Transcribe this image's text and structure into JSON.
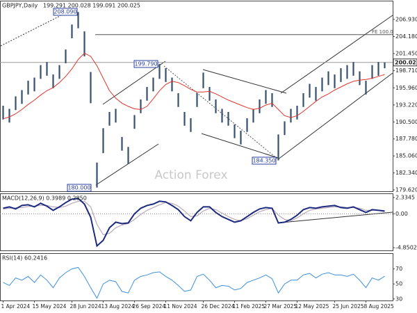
{
  "chart_data": [
    {
      "type": "ohlc",
      "title": "GBPJPY,Daily",
      "subtitle": "199.291 200.028 199.091 200.025",
      "high": [
        193.1,
        192.6,
        194.6,
        195.6,
        197.1,
        197.6,
        199.6,
        200.1,
        198.1,
        199.6,
        202.1,
        206.1,
        208.09,
        205.0,
        198.5,
        184.0,
        189.5,
        192.1,
        192.6,
        188.1,
        186.5,
        191.6,
        194.1,
        196.1,
        197.6,
        199.79,
        199.1,
        197.6,
        195.1,
        192.1,
        191.1,
        195.1,
        198.4,
        196.1,
        194.1,
        192.6,
        192.1,
        190.1,
        189.1,
        191.1,
        192.6,
        194.1,
        195.6,
        195.1,
        188.5,
        190.6,
        192.6,
        193.1,
        195.1,
        196.6,
        196.1,
        197.6,
        198.6,
        198.1,
        199.1,
        199.6,
        200.1,
        198.6,
        197.1,
        199.6,
        200.1,
        200.028
      ],
      "low": [
        190.9,
        190.4,
        192.4,
        193.4,
        194.9,
        195.4,
        197.4,
        197.9,
        195.9,
        197.4,
        199.9,
        203.9,
        205.5,
        201.0,
        193.5,
        180.0,
        185.5,
        189.9,
        190.4,
        185.9,
        183.8,
        189.4,
        191.9,
        193.9,
        195.4,
        197.4,
        196.9,
        195.4,
        192.9,
        189.9,
        188.9,
        192.9,
        195.9,
        193.9,
        191.9,
        190.4,
        189.9,
        187.9,
        186.9,
        188.9,
        190.4,
        191.9,
        193.4,
        192.9,
        184.35,
        188.4,
        190.4,
        190.9,
        192.9,
        194.4,
        193.9,
        195.4,
        196.4,
        195.9,
        196.9,
        197.4,
        197.9,
        196.4,
        194.9,
        197.4,
        197.9,
        199.091
      ],
      "color": "#34506e",
      "ma": [
        191.0,
        191.3,
        191.8,
        192.5,
        193.3,
        194.0,
        194.8,
        195.5,
        196.0,
        196.8,
        197.8,
        199.0,
        200.5,
        201.5,
        201.0,
        199.5,
        197.5,
        195.5,
        194.3,
        193.5,
        193.0,
        192.6,
        192.5,
        193.0,
        194.2,
        195.5,
        196.5,
        197.0,
        196.8,
        196.3,
        195.7,
        195.3,
        195.3,
        195.4,
        195.0,
        194.5,
        194.0,
        193.6,
        193.2,
        192.8,
        192.5,
        192.7,
        193.2,
        193.5,
        192.5,
        191.5,
        191.2,
        191.5,
        192.2,
        193.0,
        193.8,
        194.5,
        195.0,
        195.6,
        196.1,
        196.6,
        197.0,
        197.2,
        197.3,
        197.5,
        197.8,
        198.1
      ],
      "ma_color": "#e2342c",
      "ylim": [
        179.4,
        209.8
      ],
      "yticks": [
        {
          "value": 206.93,
          "label": "206.930"
        },
        {
          "value": 204.18,
          "label": "204.180"
        },
        {
          "value": 201.45,
          "label": "201.450"
        },
        {
          "value": 198.71,
          "label": "198.710"
        },
        {
          "value": 195.96,
          "label": "195.960"
        },
        {
          "value": 193.22,
          "label": "193.220"
        },
        {
          "value": 190.5,
          "label": "190.500"
        },
        {
          "value": 187.78,
          "label": "187.780"
        },
        {
          "value": 185.06,
          "label": "185.060"
        },
        {
          "value": 182.34,
          "label": "182.340"
        },
        {
          "value": 179.62,
          "label": "179.620"
        }
      ],
      "last_price": {
        "value": 200.025,
        "label": "200.025"
      },
      "fe_level": 204.48,
      "fe_label": "FE 100.0",
      "annotations": [
        "208.090",
        "199.790",
        "184.350",
        "180.000"
      ],
      "watermark": "Action Forex"
    },
    {
      "type": "macd",
      "title": "MACD(12,26,9) 0.3989 0.2850",
      "values": [
        0.8,
        1.0,
        0.7,
        1.2,
        1.3,
        1.0,
        1.5,
        1.1,
        0.5,
        1.0,
        1.6,
        2.1,
        2.2,
        1.4,
        -0.5,
        -4.6,
        -3.8,
        -2.0,
        -1.2,
        -1.4,
        -1.3,
        0.0,
        0.8,
        1.2,
        1.4,
        1.8,
        1.7,
        1.2,
        0.6,
        -0.4,
        -1.0,
        0.2,
        1.0,
        1.0,
        0.2,
        -0.4,
        -0.8,
        -1.2,
        -1.0,
        -0.4,
        0.2,
        0.7,
        0.9,
        0.8,
        -1.3,
        -1.2,
        -0.8,
        -0.2,
        0.6,
        0.9,
        0.8,
        1.0,
        1.1,
        1.2,
        0.9,
        0.8,
        1.0,
        0.6,
        0.2,
        0.6,
        0.5,
        0.3989
      ],
      "color": "#1c2a80",
      "signal": [
        0.7,
        0.8,
        0.85,
        0.9,
        1.05,
        1.1,
        1.2,
        1.2,
        1.0,
        0.9,
        1.1,
        1.5,
        1.8,
        1.8,
        1.0,
        -1.5,
        -3.0,
        -2.8,
        -2.0,
        -1.6,
        -1.4,
        -0.8,
        -0.1,
        0.5,
        0.9,
        1.3,
        1.6,
        1.5,
        1.1,
        0.4,
        -0.4,
        -0.3,
        0.4,
        0.8,
        0.6,
        0.1,
        -0.4,
        -0.8,
        -1.0,
        -0.7,
        -0.2,
        0.3,
        0.6,
        0.8,
        -0.2,
        -0.8,
        -1.0,
        -0.6,
        0.0,
        0.5,
        0.7,
        0.8,
        0.9,
        1.0,
        1.0,
        0.9,
        0.9,
        0.8,
        0.5,
        0.5,
        0.5,
        0.285
      ],
      "signal_color": "#b9a9b9",
      "ylim": [
        -5.24,
        2.83
      ],
      "yticks": [
        2.3345,
        {
          "value": 0,
          "label": "0.00"
        },
        -4.8502
      ]
    },
    {
      "type": "line",
      "title": "RSI(14) 60.2416",
      "categories": [
        "1 Apr 2024",
        null,
        null,
        null,
        null,
        "15 May 2024",
        null,
        null,
        null,
        null,
        null,
        "28 Jun 2024",
        null,
        null,
        null,
        null,
        "13 Aug 2024",
        null,
        null,
        null,
        null,
        "26 Sep 2024",
        null,
        null,
        null,
        null,
        "11 Nov 2024",
        null,
        null,
        null,
        null,
        null,
        "26 Dec 2024",
        null,
        null,
        null,
        null,
        "11 Feb 2025",
        null,
        null,
        null,
        null,
        "27 Mar 2025",
        null,
        null,
        null,
        null,
        "12 May 2025",
        null,
        null,
        null,
        null,
        null,
        "25 Jun 2025",
        null,
        null,
        null,
        null,
        "8 Aug 2025",
        null,
        null,
        null
      ],
      "values": [
        52,
        48,
        58,
        55,
        60,
        52,
        62,
        55,
        45,
        58,
        65,
        70,
        72,
        60,
        45,
        31,
        50,
        55,
        53,
        40,
        38,
        55,
        60,
        62,
        65,
        66,
        60,
        55,
        48,
        40,
        42,
        60,
        63,
        55,
        45,
        48,
        47,
        42,
        44,
        52,
        55,
        58,
        62,
        57,
        38,
        50,
        55,
        55,
        62,
        64,
        58,
        63,
        65,
        62,
        62,
        60,
        63,
        55,
        45,
        58,
        55,
        60.2416
      ],
      "color": "#3d8fe0",
      "ylim": [
        28,
        90
      ],
      "yticks": [
        30,
        50,
        70
      ]
    }
  ]
}
